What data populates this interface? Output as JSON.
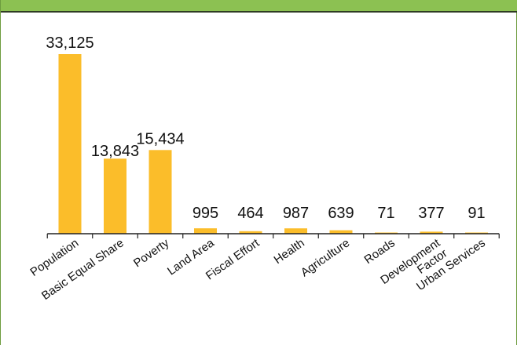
{
  "chart_data": {
    "type": "bar",
    "categories": [
      "Population",
      "Basic Equal Share",
      "Poverty",
      "Land Area",
      "Fiscal Effort",
      "Health",
      "Agriculture",
      "Roads",
      "Development Factor",
      "Urban Services"
    ],
    "values": [
      33125,
      13843,
      15434,
      995,
      464,
      987,
      639,
      71,
      377,
      91
    ],
    "data_labels": [
      "33,125",
      "13,843",
      "15,434",
      "995",
      "464",
      "987",
      "639",
      "71",
      "377",
      "91"
    ],
    "title": "",
    "xlabel": "",
    "ylabel": "",
    "ylim": [
      0,
      33125
    ],
    "grid": false,
    "legend": "none",
    "colors": {
      "bar": "#fbbd2a",
      "axis": "#222222",
      "text": "#111111",
      "frame_band": "#8cc152",
      "frame_border": "#6d9c3e"
    }
  }
}
